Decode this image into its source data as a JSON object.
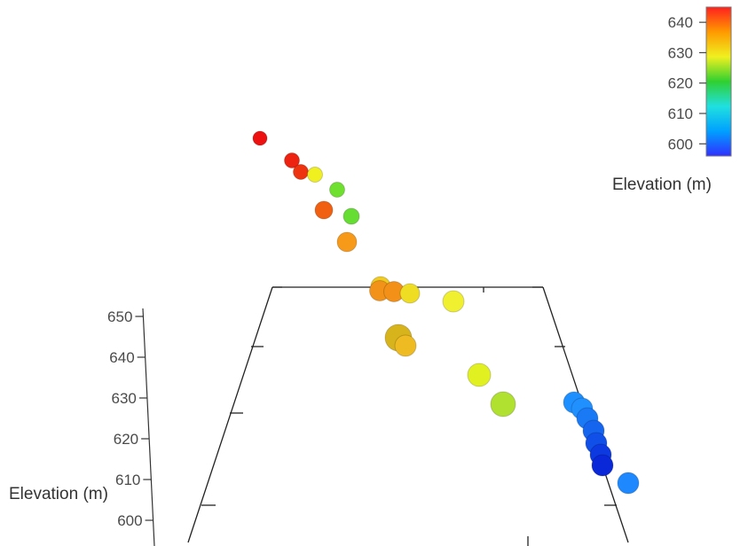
{
  "chart_data": {
    "type": "scatter",
    "dimensions": "3d",
    "title": "",
    "zlabel": "Elevation (m)",
    "zticks": [
      650,
      640,
      630,
      620,
      610,
      600
    ],
    "zlim": [
      598,
      652
    ],
    "colorbar": {
      "label": "Elevation (m)",
      "ticks": [
        640,
        630,
        620,
        610,
        600
      ],
      "range": [
        596,
        645
      ],
      "colormap": [
        "#3030ff",
        "#00a0ff",
        "#20e0e0",
        "#30d030",
        "#f0f020",
        "#ff9900",
        "#ff2020"
      ]
    },
    "points": [
      {
        "elevation": 645,
        "color": "#ee1111"
      },
      {
        "elevation": 644,
        "color": "#ee2211"
      },
      {
        "elevation": 643,
        "color": "#ee3311"
      },
      {
        "elevation": 632,
        "color": "#f0f020"
      },
      {
        "elevation": 624,
        "color": "#70e030"
      },
      {
        "elevation": 640,
        "color": "#f06010"
      },
      {
        "elevation": 623,
        "color": "#66dd33"
      },
      {
        "elevation": 637,
        "color": "#f79a1a"
      },
      {
        "elevation": 634,
        "color": "#f0cc20"
      },
      {
        "elevation": 637,
        "color": "#f39218"
      },
      {
        "elevation": 638,
        "color": "#f29018"
      },
      {
        "elevation": 634,
        "color": "#eedd22"
      },
      {
        "elevation": 632,
        "color": "#f0f030"
      },
      {
        "elevation": 635,
        "color": "#d8b41c"
      },
      {
        "elevation": 634,
        "color": "#eebb22"
      },
      {
        "elevation": 630,
        "color": "#e0f020"
      },
      {
        "elevation": 627,
        "color": "#b0e030"
      },
      {
        "elevation": 608,
        "color": "#1e8fff"
      },
      {
        "elevation": 607,
        "color": "#2090ff"
      },
      {
        "elevation": 606,
        "color": "#1a7af5"
      },
      {
        "elevation": 604,
        "color": "#1565ee"
      },
      {
        "elevation": 603,
        "color": "#1050e8"
      },
      {
        "elevation": 601,
        "color": "#0c3ae0"
      },
      {
        "elevation": 600,
        "color": "#0a28d8"
      },
      {
        "elevation": 607,
        "color": "#1e88ff"
      }
    ]
  }
}
